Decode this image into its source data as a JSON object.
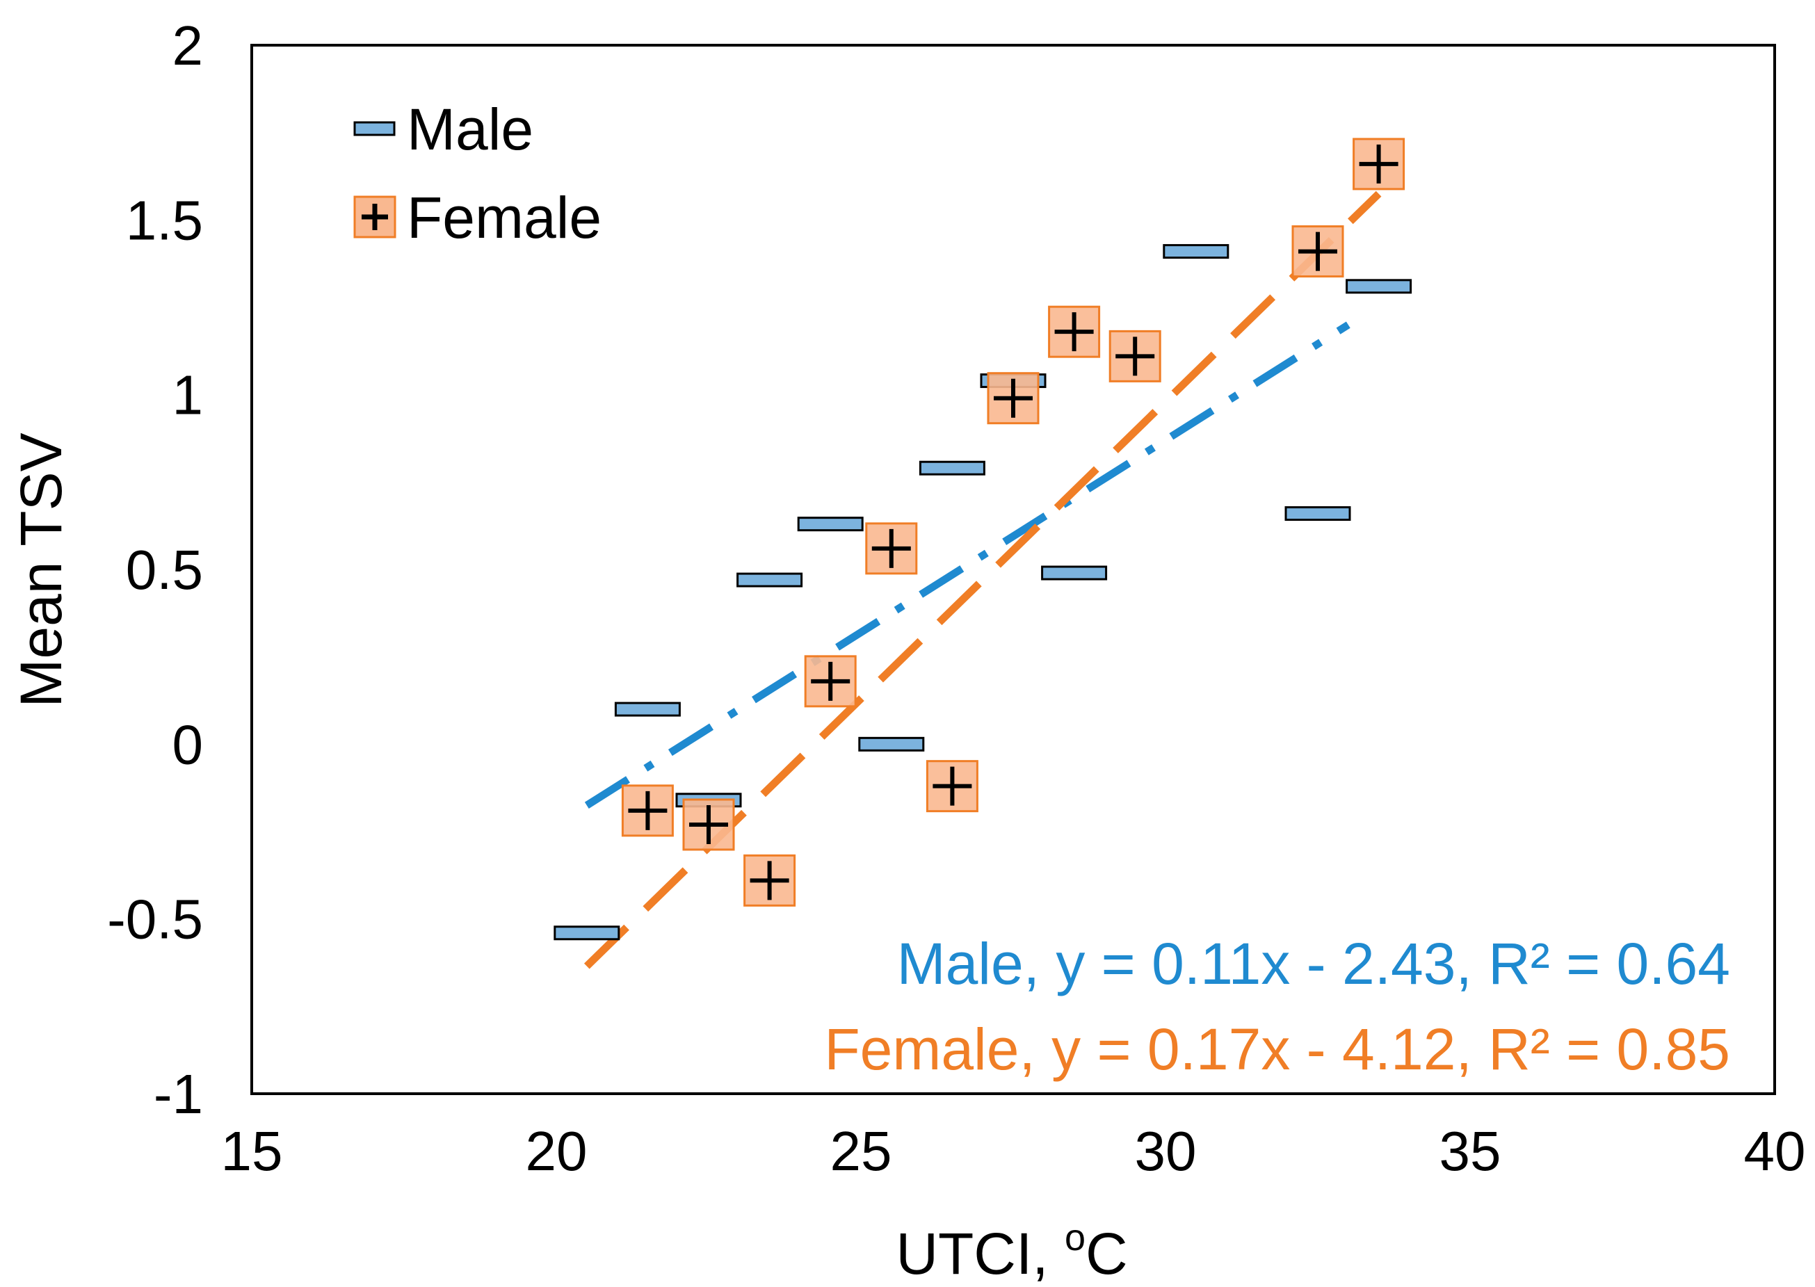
{
  "chart_data": {
    "type": "scatter",
    "xlabel": "UTCI, oC",
    "xlabel_main": "UTCI, ",
    "xlabel_super": "o",
    "xlabel_tail": "C",
    "ylabel": "Mean TSV",
    "xlim": [
      15,
      40
    ],
    "ylim": [
      -1,
      2
    ],
    "xticks": [
      "15",
      "20",
      "25",
      "30",
      "35",
      "40"
    ],
    "yticks": [
      "2",
      "1.5",
      "1",
      "0.5",
      "0",
      "-0.5",
      "-1"
    ],
    "legend_position": "top-left",
    "series": [
      {
        "name": "Male",
        "color": "#1f8ad0",
        "marker_fill": "#7cb3de",
        "marker": "dash",
        "points": [
          {
            "x": 20.5,
            "y": -0.54
          },
          {
            "x": 21.5,
            "y": 0.1
          },
          {
            "x": 22.5,
            "y": -0.16
          },
          {
            "x": 23.5,
            "y": 0.47
          },
          {
            "x": 24.5,
            "y": 0.63
          },
          {
            "x": 25.5,
            "y": 0.0
          },
          {
            "x": 26.5,
            "y": 0.79
          },
          {
            "x": 27.5,
            "y": 1.04
          },
          {
            "x": 28.5,
            "y": 0.49
          },
          {
            "x": 30.5,
            "y": 1.41
          },
          {
            "x": 32.5,
            "y": 0.66
          },
          {
            "x": 33.5,
            "y": 1.31
          }
        ],
        "trendline": {
          "x_from": 20.5,
          "x_to": 33.0,
          "slope": 0.11,
          "intercept": -2.43,
          "style": "dash-dot"
        },
        "equation": "Male, y = 0.11x - 2.43, R² = 0.64"
      },
      {
        "name": "Female",
        "color": "#f07e26",
        "marker_fill": "#f9b890",
        "marker": "plus-square",
        "points": [
          {
            "x": 21.5,
            "y": -0.19
          },
          {
            "x": 22.5,
            "y": -0.23
          },
          {
            "x": 23.5,
            "y": -0.39
          },
          {
            "x": 24.5,
            "y": 0.18
          },
          {
            "x": 25.5,
            "y": 0.56
          },
          {
            "x": 26.5,
            "y": -0.12
          },
          {
            "x": 27.5,
            "y": 0.99
          },
          {
            "x": 28.5,
            "y": 1.18
          },
          {
            "x": 29.5,
            "y": 1.11
          },
          {
            "x": 32.5,
            "y": 1.41
          },
          {
            "x": 33.5,
            "y": 1.66
          }
        ],
        "trendline": {
          "x_from": 20.5,
          "x_to": 33.5,
          "slope": 0.17,
          "intercept": -4.12,
          "style": "dashed"
        },
        "equation": "Female, y = 0.17x - 4.12, R² = 0.85"
      }
    ]
  }
}
